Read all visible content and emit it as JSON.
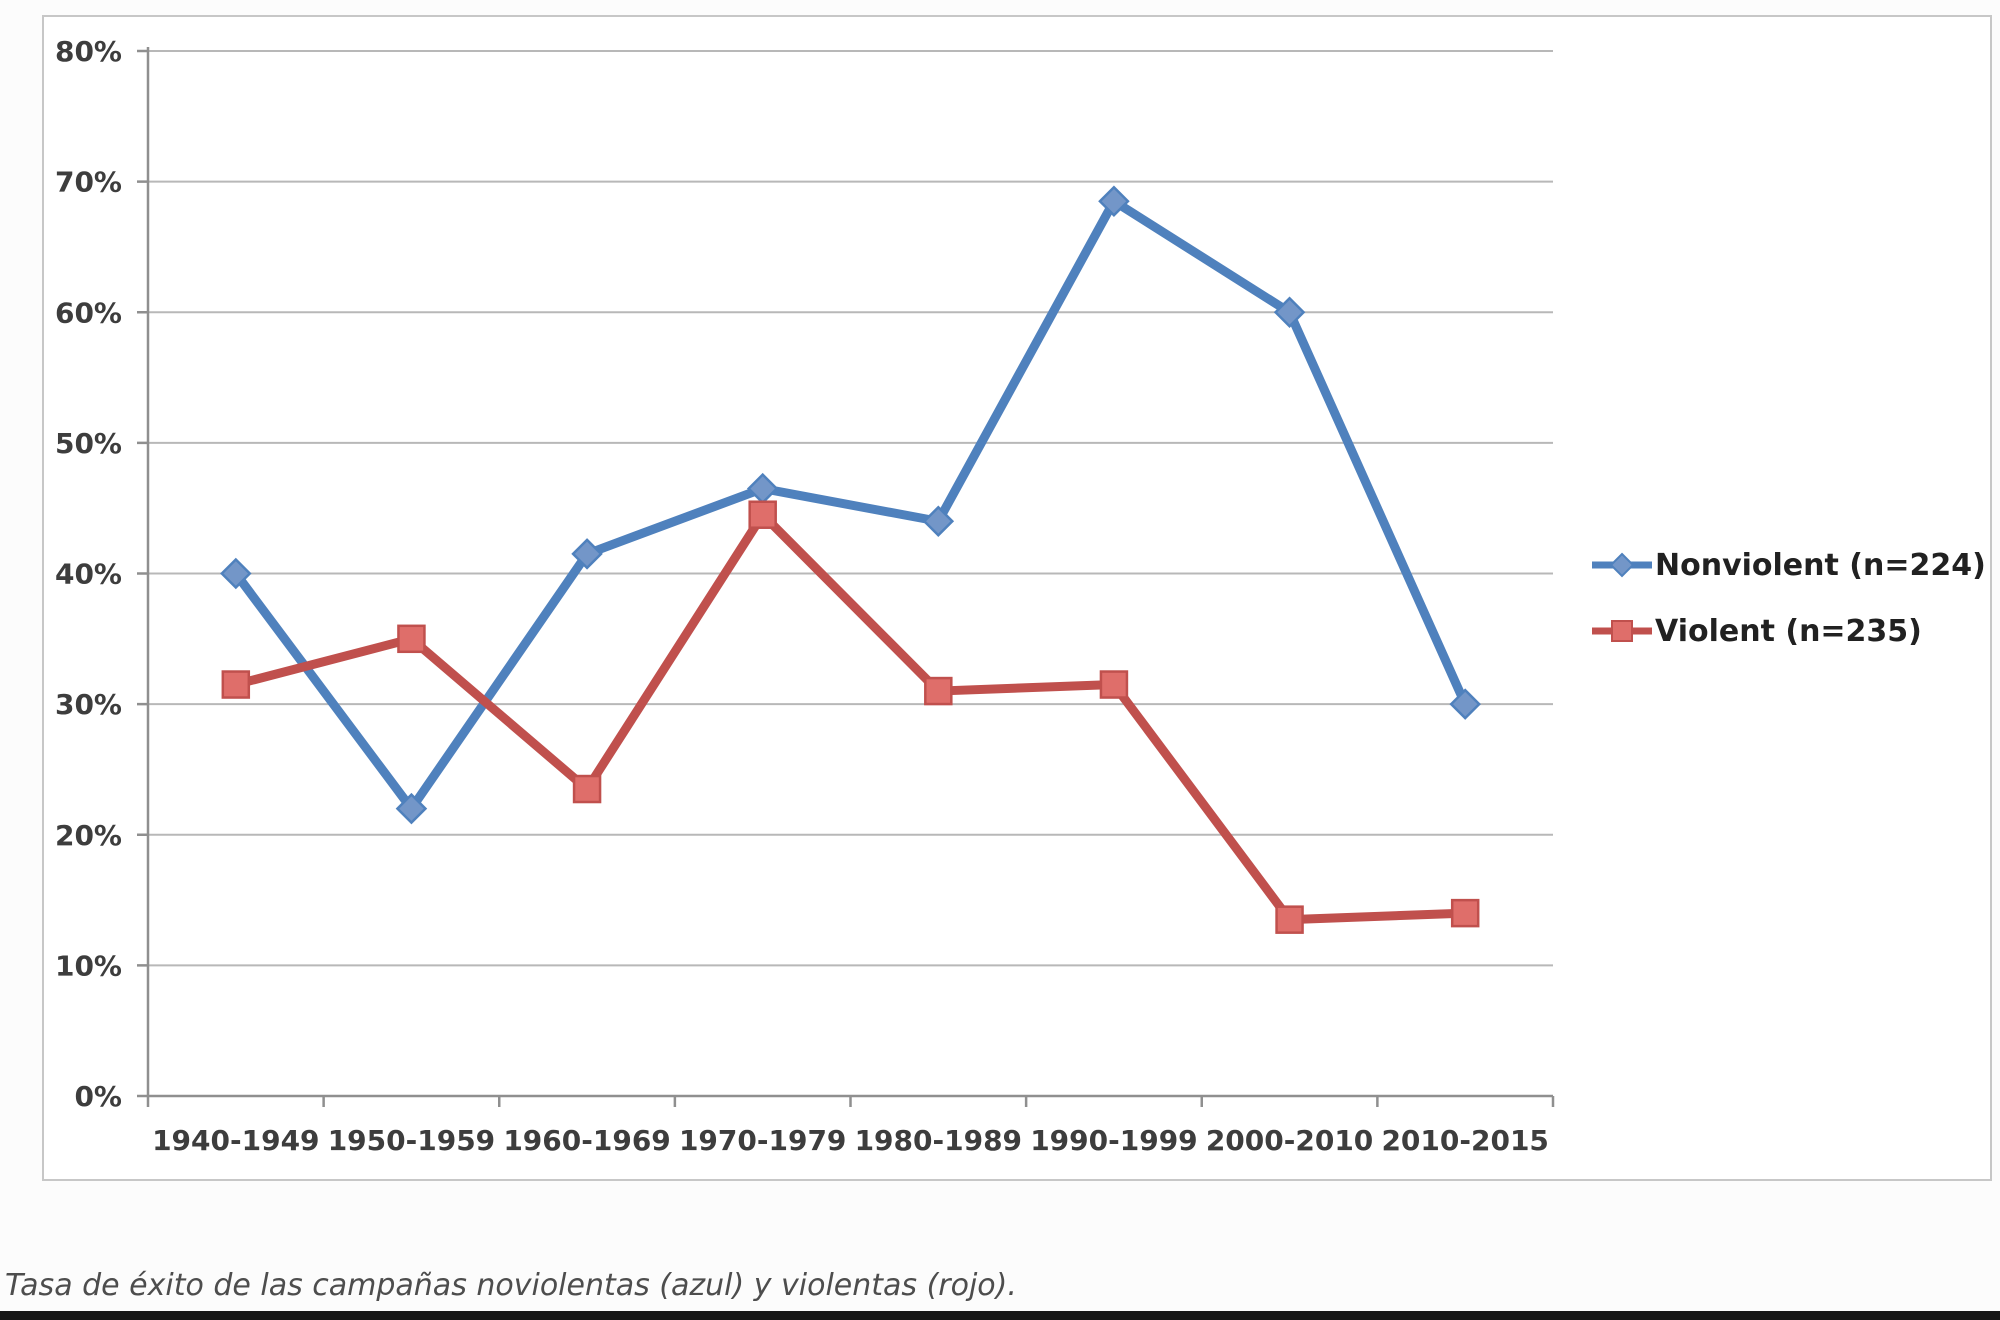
{
  "page": {
    "caption": "Tasa de éxito de las campañas noviolentas (azul) y violentas (rojo).",
    "background_color": "#fcfcfc",
    "chart_border_color": "#c7c7c7",
    "bottom_bar_color": "#171717"
  },
  "chart_data": {
    "type": "line",
    "categories": [
      "1940-1949",
      "1950-1959",
      "1960-1969",
      "1970-1979",
      "1980-1989",
      "1990-1999",
      "2000-2010",
      "2010-2015"
    ],
    "series": [
      {
        "name": "Nonviolent (n=224)",
        "color": "#4f81bd",
        "marker": "diamond",
        "marker_fill": "#7396c8",
        "values": [
          40,
          22,
          41.5,
          46.5,
          44,
          68.5,
          60,
          30
        ]
      },
      {
        "name": "Violent (n=235)",
        "color": "#c0504d",
        "marker": "square",
        "marker_fill": "#df6e6a",
        "values": [
          31.5,
          35,
          23.5,
          44.5,
          31,
          31.5,
          13.5,
          14
        ]
      }
    ],
    "title": "",
    "xlabel": "",
    "ylabel": "",
    "ylim": [
      0,
      80
    ],
    "ytick_step": 10,
    "ytick_labels": [
      "0%",
      "10%",
      "20%",
      "30%",
      "40%",
      "50%",
      "60%",
      "70%",
      "80%"
    ],
    "grid": true,
    "grid_color": "#b8b8b8",
    "axis_color": "#8f8f8f",
    "tick_text_color": "#3d3d3d",
    "legend_position": "right"
  }
}
